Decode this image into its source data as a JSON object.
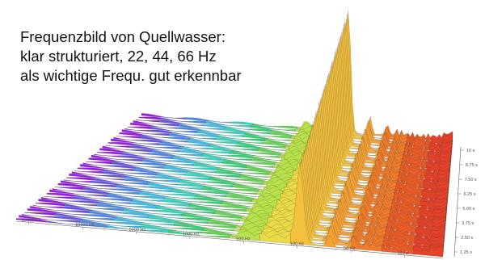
{
  "caption": {
    "line1": "Frequenzbild von Quellwasser:",
    "line2": "klar strukturiert, 22, 44, 66 Hz",
    "line3": "als wichtige Frequ. gut erkennbar"
  },
  "chart_data": {
    "type": "area",
    "subtype": "3d-waterfall-spectrum",
    "title": "",
    "xlabel": "",
    "ylabel": "",
    "x_axis_ticks": [
      "20000 Hz",
      "10000 Hz",
      "5000 Hz",
      "1000 Hz",
      "500 Hz",
      "100 Hz",
      "50 Hz",
      "10 Hz"
    ],
    "time_axis_ticks": [
      "10 s",
      "8.75 s",
      "7.50 s",
      "6.25 s",
      "5.00 s",
      "3.75 s",
      "2.50 s",
      "1.25 s"
    ],
    "color_scale": [
      "#b000e0",
      "#4f6ff0",
      "#35d7e6",
      "#2fd34f",
      "#e6e64a",
      "#f7b53a",
      "#ee6a27",
      "#e0352a"
    ],
    "peaks": [
      {
        "label": "22 Hz",
        "relative_amplitude": 1.0
      },
      {
        "label": "44 Hz",
        "relative_amplitude": 0.16
      },
      {
        "label": "66 Hz",
        "relative_amplitude": 0.1
      }
    ],
    "grid": false
  }
}
